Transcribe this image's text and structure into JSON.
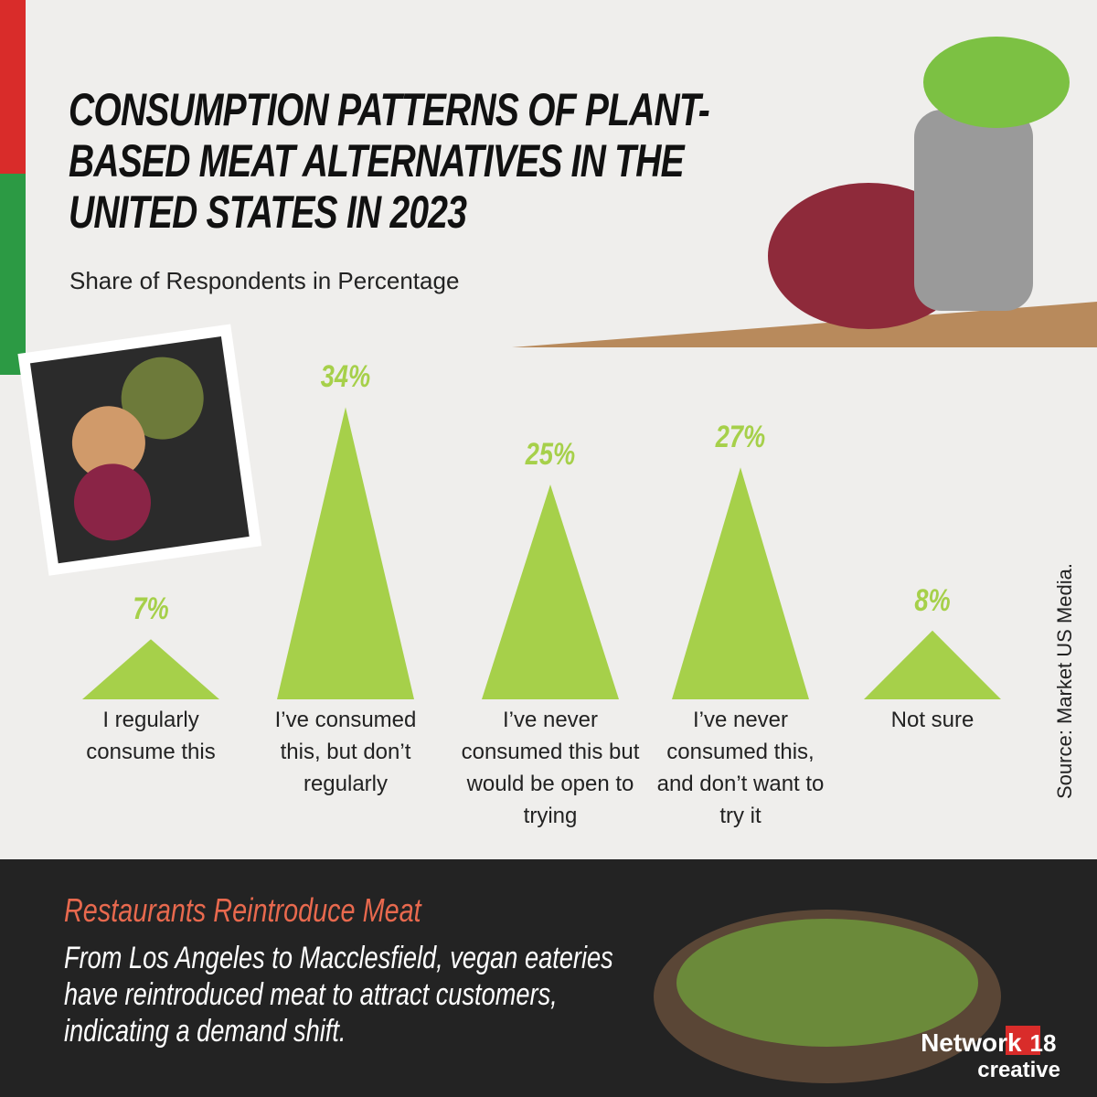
{
  "chart_data": {
    "type": "triangle",
    "title": "CONSUMPTION PATTERNS OF PLANT-BASED MEAT ALTERNATIVES IN THE UNITED STATES IN 2023",
    "subtitle": "Share of Respondents in Percentage",
    "categories": [
      "I regularly consume this",
      "I’ve consumed this, but don’t regularly",
      "I’ve never consumed this but would be open to trying",
      "I’ve never consumed this, and don’t want to try it",
      "Not sure"
    ],
    "values": [
      7,
      34,
      25,
      27,
      8
    ],
    "value_labels": [
      "7%",
      "34%",
      "25%",
      "27%",
      "8%"
    ],
    "color": "#a6d04a",
    "source": "Source: Market US Media."
  },
  "footer": {
    "heading": "Restaurants Reintroduce Meat",
    "text": "From Los Angeles to Macclesfield, vegan eateries have reintroduced meat to attract customers, indicating a demand shift."
  },
  "logo": {
    "name": "Network",
    "number": "18",
    "tagline": "creative"
  }
}
